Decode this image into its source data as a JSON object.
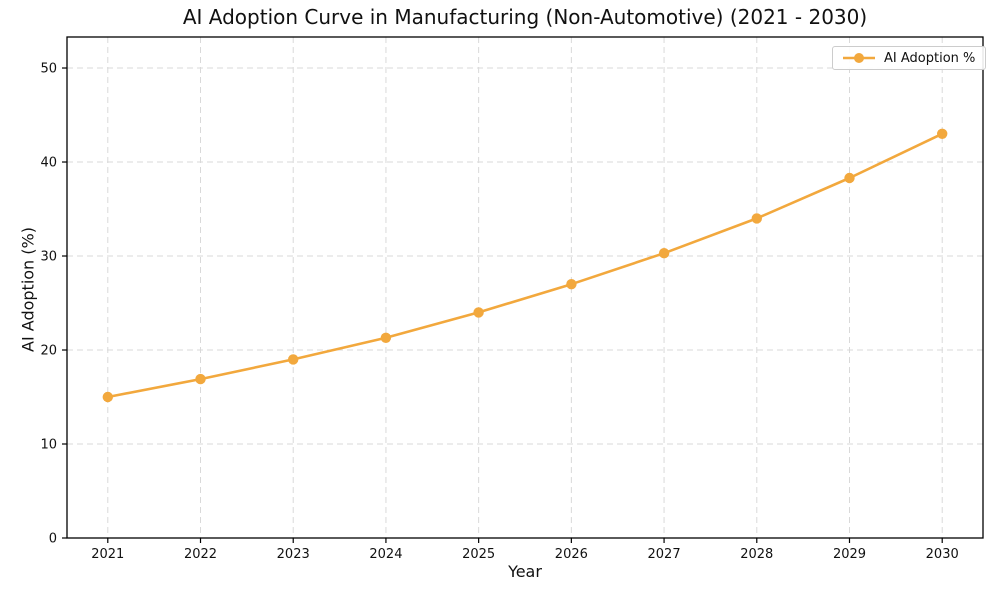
{
  "style": {
    "accent": "#F2A83D",
    "grid_color": "#D9D9D9",
    "spine_color": "#000000",
    "text_color": "#111111",
    "legend_border": "#CCCCCC",
    "background": "#FFFFFF"
  },
  "chart_data": {
    "type": "line",
    "title": "AI Adoption Curve in Manufacturing (Non-Automotive) (2021 - 2030)",
    "xlabel": "Year",
    "ylabel": "AI Adoption (%)",
    "x": [
      2021,
      2022,
      2023,
      2024,
      2025,
      2026,
      2027,
      2028,
      2029,
      2030
    ],
    "series": [
      {
        "name": "AI Adoption %",
        "color": "#F2A83D",
        "marker": "circle",
        "values": [
          15.0,
          16.9,
          19.0,
          21.3,
          24.0,
          27.0,
          30.3,
          34.0,
          38.3,
          43.0
        ]
      }
    ],
    "xticks": [
      2021,
      2022,
      2023,
      2024,
      2025,
      2026,
      2027,
      2028,
      2029,
      2030
    ],
    "yticks": [
      0,
      10,
      20,
      30,
      40,
      50
    ],
    "xlim": [
      2020.56,
      2030.44
    ],
    "ylim": [
      0,
      53.3
    ],
    "grid": true,
    "grid_style": "dashed",
    "legend_position": "upper right"
  }
}
